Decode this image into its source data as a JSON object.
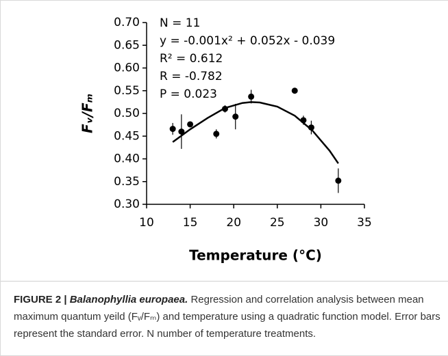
{
  "chart_data": {
    "type": "scatter",
    "x_label": "Temperature (°C)",
    "y_label": "Fᵥ/Fₘ",
    "annotations": [
      "N = 11",
      "y = -0.001x² + 0.052x - 0.039",
      "R² = 0.612",
      "R = -0.782",
      "P = 0.023"
    ],
    "xlim": [
      10,
      35
    ],
    "xticks": [
      10,
      15,
      20,
      25,
      30,
      35
    ],
    "ylim": [
      0.3,
      0.7
    ],
    "yticks": [
      {
        "value": 0.3,
        "label": "0.30"
      },
      {
        "value": 0.35,
        "label": "0.35"
      },
      {
        "value": 0.4,
        "label": "0.40"
      },
      {
        "value": 0.45,
        "label": "0.45"
      },
      {
        "value": 0.5,
        "label": "0.50"
      },
      {
        "value": 0.55,
        "label": "0.55"
      },
      {
        "value": 0.6,
        "label": "0.60"
      },
      {
        "value": 0.65,
        "label": "0.65"
      },
      {
        "value": 0.7,
        "label": "0.70"
      }
    ],
    "series": [
      {
        "color": "#000000",
        "x": [
          13,
          14,
          15,
          18,
          19,
          20.2,
          22,
          27,
          28,
          28.9,
          32
        ],
        "values": [
          0.466,
          0.46,
          0.476,
          0.455,
          0.51,
          0.493,
          0.537,
          0.55,
          0.485,
          0.469,
          0.352
        ],
        "errors": [
          0.013,
          0.038,
          0.005,
          0.01,
          0.008,
          0.028,
          0.015,
          0.003,
          0.01,
          0.015,
          0.027
        ]
      }
    ],
    "fit_curve": {
      "color": "#000000",
      "x": [
        13,
        15,
        17,
        19,
        21,
        22,
        23,
        25,
        27,
        29,
        31,
        32
      ],
      "values": [
        0.437,
        0.465,
        0.49,
        0.512,
        0.523,
        0.525,
        0.524,
        0.515,
        0.495,
        0.463,
        0.418,
        0.39
      ]
    }
  },
  "caption": {
    "label": "FIGURE 2 |",
    "species": "Balanophyllia europaea.",
    "text": "Regression and correlation analysis between mean maximum quantum yeild (Fᵥ/Fₘ) and temperature using a quadratic function model. Error bars represent the standard error. N number of temperature treatments."
  }
}
